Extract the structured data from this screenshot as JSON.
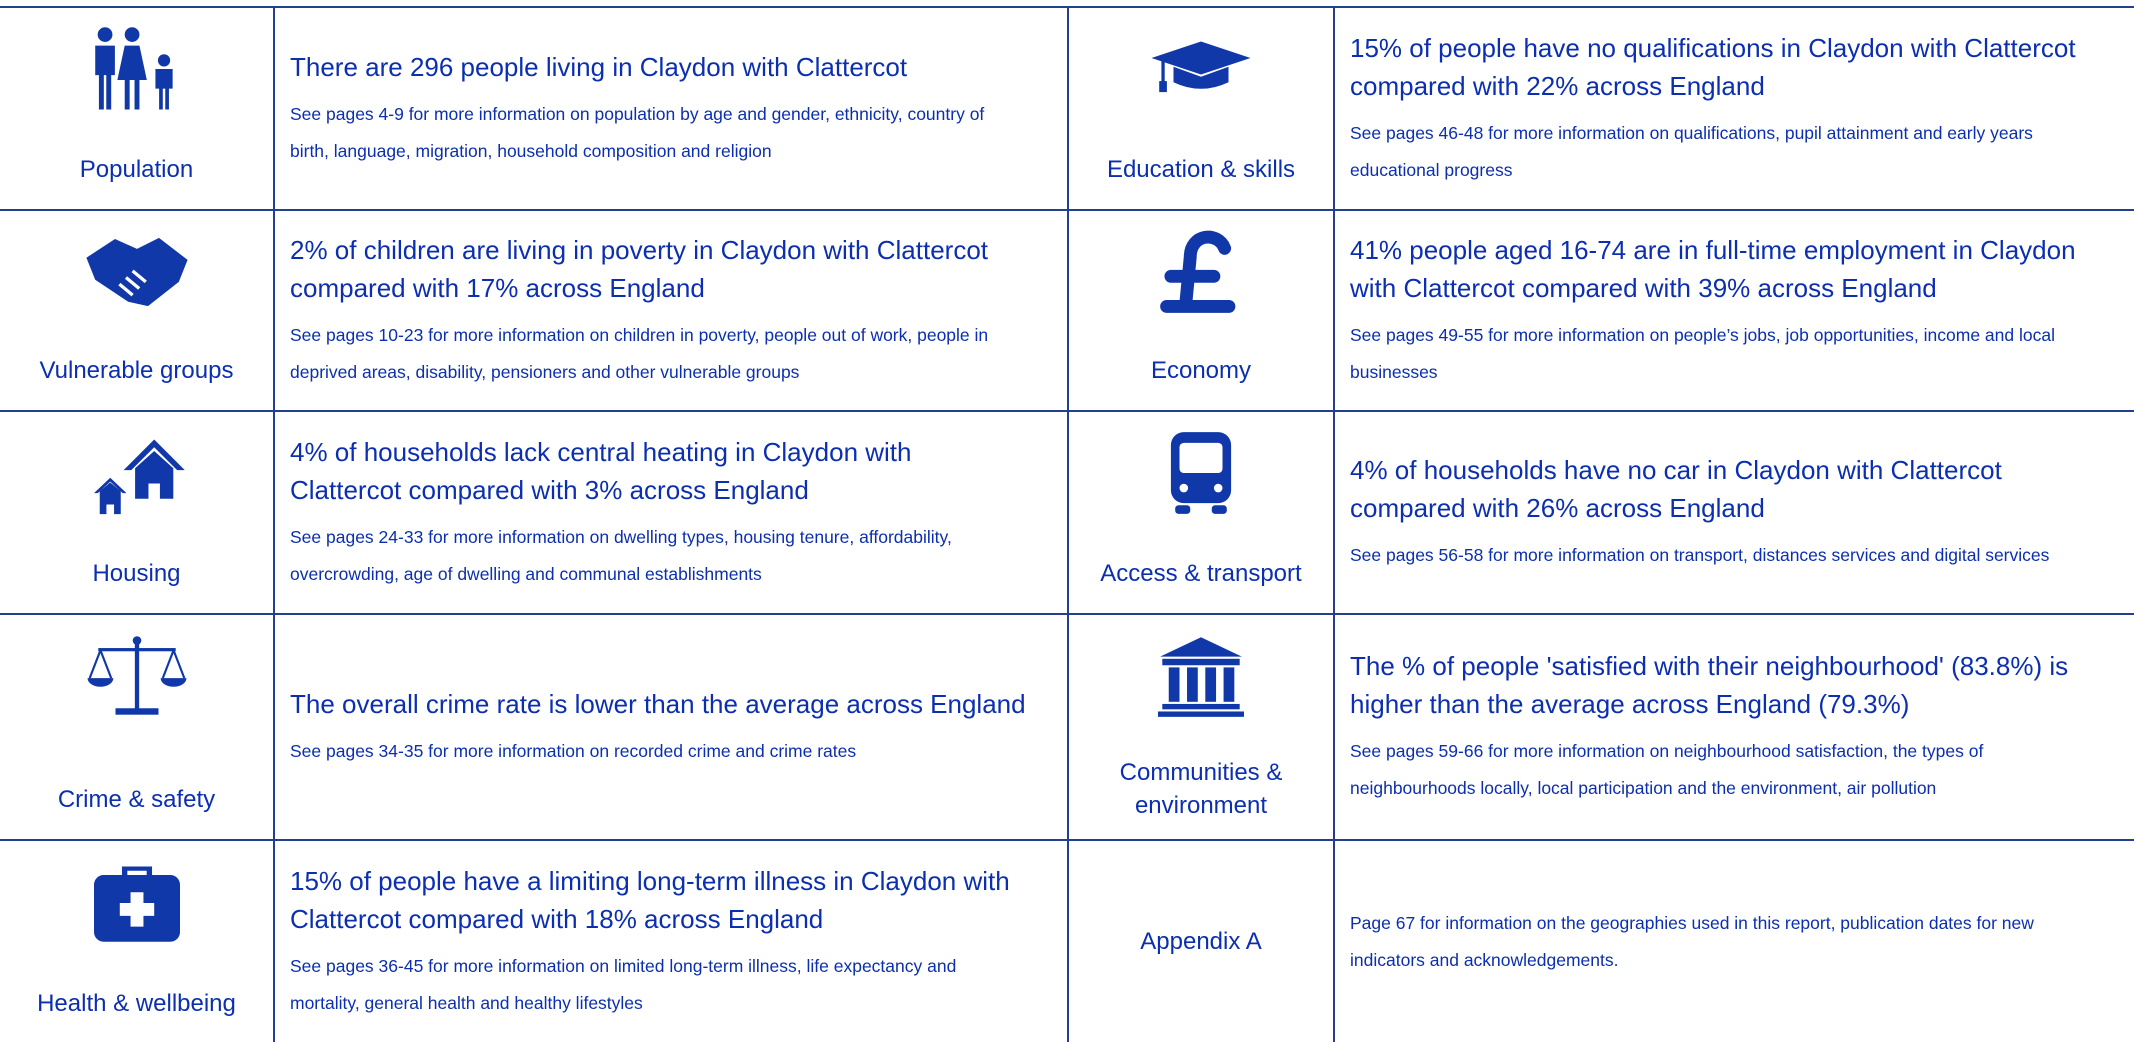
{
  "rows": [
    {
      "left": {
        "label": "Population",
        "headline": "There are 296 people living in Claydon with Clattercot",
        "detail": "See pages 4-9 for more information on population by age and gender, ethnicity, country of birth, language, migration, household composition and religion"
      },
      "right": {
        "label": "Education & skills",
        "headline": "15% of people have no qualifications in Claydon with Clattercot compared with 22% across England",
        "detail": "See pages 46-48 for more information on qualifications, pupil attainment and early years educational progress"
      }
    },
    {
      "left": {
        "label": "Vulnerable groups",
        "headline": "2% of children are living in poverty in Claydon with Clattercot compared with 17% across England",
        "detail": "See pages 10-23 for more information on children in poverty, people out of work, people in deprived areas, disability, pensioners and other vulnerable groups"
      },
      "right": {
        "label": "Economy",
        "headline": "41% people aged 16-74 are in full-time employment in Claydon with Clattercot compared with 39% across England",
        "detail": "See pages 49-55 for more information on people’s jobs, job opportunities, income and local businesses"
      }
    },
    {
      "left": {
        "label": "Housing",
        "headline": "4% of households lack central heating in Claydon with Clattercot compared with 3% across England",
        "detail": "See pages 24-33 for more information on dwelling types, housing tenure, affordability, overcrowding, age of dwelling and communal establishments"
      },
      "right": {
        "label": "Access & transport",
        "headline": "4% of households have no car in Claydon with Clattercot compared with 26% across England",
        "detail": "See pages 56-58 for more information on transport, distances services and digital services"
      }
    },
    {
      "left": {
        "label": "Crime & safety",
        "headline": "The overall crime rate is lower than the average across England",
        "detail": "See pages 34-35 for more information on recorded crime and crime rates"
      },
      "right": {
        "label": "Communities & environment",
        "headline": "The % of people 'satisfied with their neighbourhood' (83.8%) is higher than the average across England (79.3%)",
        "detail": "See pages 59-66 for more information on neighbourhood satisfaction, the types of neighbourhoods locally, local participation and the environment, air pollution"
      }
    },
    {
      "left": {
        "label": "Health & wellbeing",
        "headline": "15% of people have a limiting long-term illness in Claydon with Clattercot compared with 18% across England",
        "detail": "See pages 36-45 for more information on limited long-term illness, life expectancy and mortality, general health and healthy lifestyles"
      },
      "right": {
        "label": "Appendix A",
        "detail": "Page 67 for information on the geographies used in this report, publication dates for new indicators and acknowledgements."
      }
    }
  ]
}
